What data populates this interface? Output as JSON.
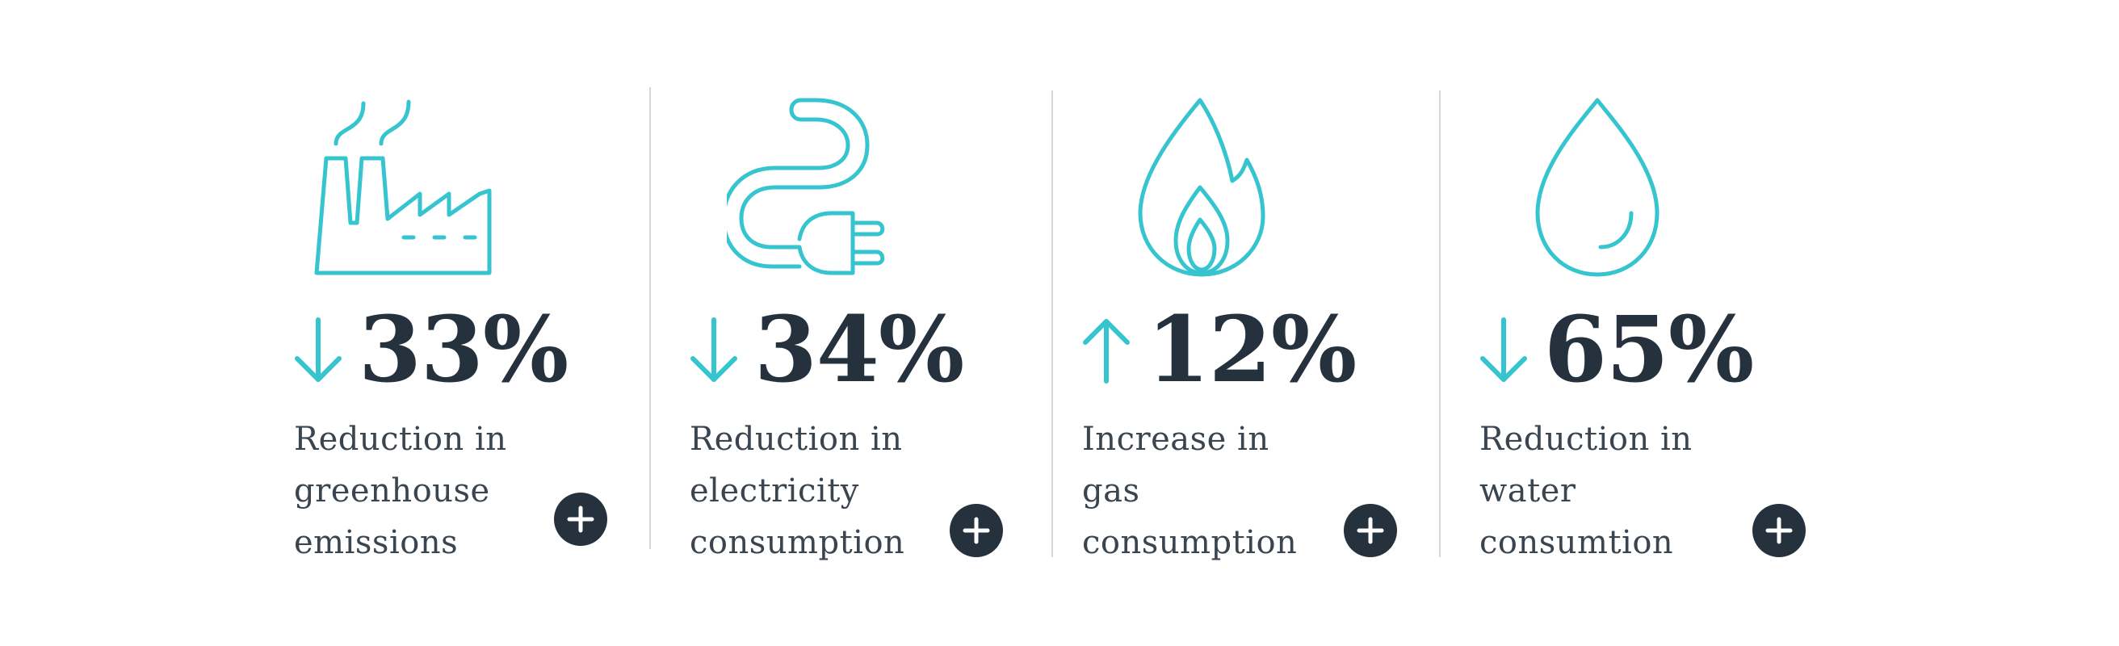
{
  "colors": {
    "accent": "#36c5cf",
    "dark": "#25313d",
    "divider": "#d5d7da"
  },
  "stats": [
    {
      "icon": "factory-icon",
      "direction": "down",
      "value": "33%",
      "label_lines": [
        "Reduction in",
        "greenhouse",
        "emissions"
      ]
    },
    {
      "icon": "plug-icon",
      "direction": "down",
      "value": "34%",
      "label_lines": [
        "Reduction in",
        "electricity",
        "consumption"
      ]
    },
    {
      "icon": "flame-icon",
      "direction": "up",
      "value": "12%",
      "label_lines": [
        "Increase in",
        "gas",
        "consumption"
      ]
    },
    {
      "icon": "water-drop-icon",
      "direction": "down",
      "value": "65%",
      "label_lines": [
        "Reduction in",
        "water",
        "consumtion"
      ]
    }
  ]
}
